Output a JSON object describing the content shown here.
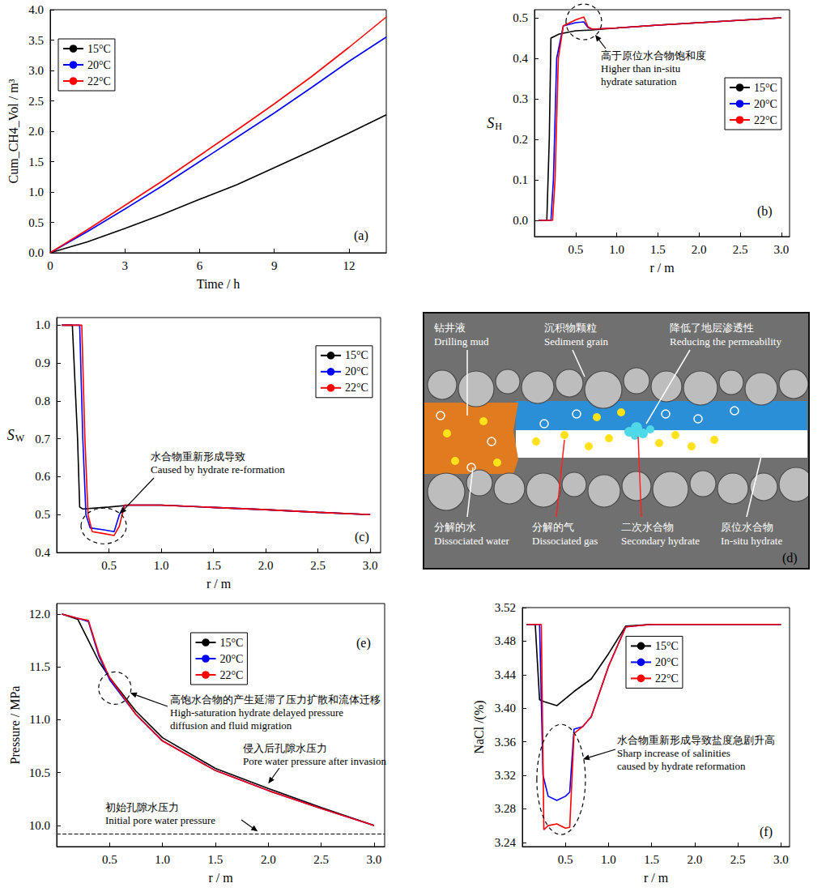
{
  "chart_data": [
    {
      "panel": "(a)",
      "type": "line",
      "x_label": "Time / h",
      "y_label": "Cum_CH4_Vol / m³",
      "x": [
        0,
        1.5,
        3,
        4.5,
        6,
        7.5,
        9,
        10.5,
        12,
        13.5
      ],
      "series": [
        {
          "name": "15°C",
          "color": "#000000",
          "values": [
            0,
            0.18,
            0.4,
            0.63,
            0.88,
            1.12,
            1.4,
            1.68,
            1.97,
            2.27
          ]
        },
        {
          "name": "20°C",
          "color": "#0000ff",
          "values": [
            0,
            0.35,
            0.72,
            1.1,
            1.5,
            1.9,
            2.3,
            2.72,
            3.15,
            3.55
          ]
        },
        {
          "name": "22°C",
          "color": "#ff0000",
          "values": [
            0,
            0.38,
            0.78,
            1.18,
            1.6,
            2.02,
            2.45,
            2.9,
            3.38,
            3.88
          ]
        }
      ],
      "xlim": [
        0,
        13.5
      ],
      "xticks": [
        0,
        3,
        6,
        9,
        12
      ],
      "ylim": [
        0,
        4
      ],
      "yticks": [
        {
          "value": 0,
          "label": "0.0"
        },
        0.5,
        {
          "value": 1,
          "label": "1.0"
        },
        1.5,
        {
          "value": 2,
          "label": "2.0"
        },
        2.5,
        {
          "value": 3,
          "label": "3.0"
        },
        3.5,
        {
          "value": 4,
          "label": "4.0"
        }
      ],
      "legend": "upper left",
      "grid": false
    },
    {
      "panel": "(b)",
      "type": "line",
      "x_label": "r / m",
      "y_label": {
        "text": "S",
        "subscript": "H"
      },
      "series": [
        {
          "name": "15°C",
          "color": "#000000",
          "x": [
            0.05,
            0.15,
            0.18,
            0.2,
            0.3,
            0.5,
            0.7,
            1.0,
            1.5,
            2.0,
            2.5,
            3.0
          ],
          "values": [
            0,
            0,
            0.2,
            0.45,
            0.46,
            0.468,
            0.47,
            0.475,
            0.482,
            0.488,
            0.494,
            0.5
          ]
        },
        {
          "name": "20°C",
          "color": "#0000ff",
          "x": [
            0.05,
            0.2,
            0.23,
            0.27,
            0.35,
            0.5,
            0.6,
            0.65,
            0.7,
            1.0,
            1.5,
            2.0,
            2.5,
            3.0
          ],
          "values": [
            0,
            0,
            0.1,
            0.4,
            0.48,
            0.488,
            0.49,
            0.476,
            0.472,
            0.475,
            0.482,
            0.488,
            0.494,
            0.5
          ]
        },
        {
          "name": "22°C",
          "color": "#ff0000",
          "x": [
            0.05,
            0.22,
            0.25,
            0.29,
            0.35,
            0.5,
            0.6,
            0.65,
            0.7,
            1.0,
            1.5,
            2.0,
            2.5,
            3.0
          ],
          "values": [
            0,
            0,
            0.1,
            0.4,
            0.48,
            0.495,
            0.502,
            0.478,
            0.472,
            0.475,
            0.482,
            0.488,
            0.494,
            0.5
          ]
        }
      ],
      "xlim": [
        0,
        3.1
      ],
      "xticks": [
        0.5,
        {
          "value": 1,
          "label": "1.0"
        },
        1.5,
        {
          "value": 2,
          "label": "2.0"
        },
        2.5,
        {
          "value": 3,
          "label": "3.0"
        }
      ],
      "ylim": [
        -0.04,
        0.52
      ],
      "yticks": [
        {
          "value": 0,
          "label": "0.0"
        },
        0.1,
        0.2,
        0.3,
        0.4,
        0.5
      ],
      "annotations": [
        {
          "zh": "高于原位水合物饱和度",
          "en": "Higher than in-situ hydrate saturation"
        }
      ],
      "legend": "right",
      "grid": false
    },
    {
      "panel": "(c)",
      "type": "line",
      "x_label": "r / m",
      "y_label": {
        "text": "S",
        "subscript": "W"
      },
      "series": [
        {
          "name": "15°C",
          "color": "#000000",
          "x": [
            0.05,
            0.15,
            0.2,
            0.22,
            0.25,
            0.5,
            0.7,
            1.0,
            1.5,
            2.0,
            2.5,
            3.0
          ],
          "values": [
            1,
            1,
            0.7,
            0.52,
            0.515,
            0.52,
            0.525,
            0.525,
            0.519,
            0.513,
            0.506,
            0.5
          ]
        },
        {
          "name": "20°C",
          "color": "#0000ff",
          "x": [
            0.05,
            0.22,
            0.25,
            0.28,
            0.32,
            0.45,
            0.55,
            0.6,
            0.65,
            1.0,
            1.5,
            2.0,
            2.5,
            3.0
          ],
          "values": [
            1,
            1,
            0.7,
            0.5,
            0.465,
            0.46,
            0.455,
            0.5,
            0.525,
            0.525,
            0.519,
            0.513,
            0.506,
            0.5
          ]
        },
        {
          "name": "22°C",
          "color": "#ff0000",
          "x": [
            0.05,
            0.24,
            0.27,
            0.3,
            0.34,
            0.45,
            0.55,
            0.6,
            0.65,
            1.0,
            1.5,
            2.0,
            2.5,
            3.0
          ],
          "values": [
            1,
            1,
            0.7,
            0.5,
            0.455,
            0.45,
            0.445,
            0.47,
            0.525,
            0.525,
            0.519,
            0.513,
            0.506,
            0.5
          ]
        }
      ],
      "xlim": [
        0,
        3.1
      ],
      "xticks": [
        0.5,
        {
          "value": 1,
          "label": "1.0"
        },
        1.5,
        {
          "value": 2,
          "label": "2.0"
        },
        2.5,
        {
          "value": 3,
          "label": "3.0"
        }
      ],
      "ylim": [
        0.4,
        1.02
      ],
      "yticks": [
        0.4,
        0.5,
        0.6,
        0.7,
        0.8,
        0.9,
        {
          "value": 1,
          "label": "1.0"
        }
      ],
      "annotations": [
        {
          "zh": "水合物重新形成导致",
          "en": "Caused by hydrate re-formation"
        }
      ],
      "legend": "upper right",
      "grid": false
    },
    {
      "panel": "(e)",
      "type": "line",
      "x_label": "r / m",
      "y_label": "Pressure / MPa",
      "series": [
        {
          "name": "15°C",
          "color": "#000000",
          "x": [
            0.05,
            0.2,
            0.3,
            0.4,
            0.5,
            0.75,
            1.0,
            1.5,
            2.0,
            2.5,
            3.0
          ],
          "values": [
            12.0,
            11.95,
            11.75,
            11.55,
            11.4,
            11.08,
            10.83,
            10.54,
            10.35,
            10.17,
            10.0
          ]
        },
        {
          "name": "20°C",
          "color": "#0000ff",
          "x": [
            0.05,
            0.2,
            0.3,
            0.4,
            0.5,
            0.75,
            1.0,
            1.5,
            2.0,
            2.5,
            3.0
          ],
          "values": [
            12.0,
            11.96,
            11.93,
            11.6,
            11.38,
            11.05,
            10.8,
            10.52,
            10.33,
            10.16,
            10.0
          ]
        },
        {
          "name": "22°C",
          "color": "#ff0000",
          "x": [
            0.05,
            0.2,
            0.3,
            0.4,
            0.5,
            0.75,
            1.0,
            1.5,
            2.0,
            2.5,
            3.0
          ],
          "values": [
            12.0,
            11.96,
            11.94,
            11.62,
            11.4,
            11.05,
            10.8,
            10.52,
            10.33,
            10.16,
            10.0
          ]
        }
      ],
      "reference_line": {
        "y": 9.92,
        "line_style": "dashed",
        "color": "#000000"
      },
      "xlim": [
        0,
        3.1
      ],
      "xticks": [
        0.5,
        {
          "value": 1,
          "label": "1.0"
        },
        1.5,
        {
          "value": 2,
          "label": "2.0"
        },
        2.5,
        {
          "value": 3,
          "label": "3.0"
        }
      ],
      "ylim": [
        9.8,
        12.1
      ],
      "yticks": [
        {
          "value": 10,
          "label": "10.0"
        },
        10.5,
        {
          "value": 11,
          "label": "11.0"
        },
        11.5,
        {
          "value": 12,
          "label": "12.0"
        }
      ],
      "annotations": [
        {
          "zh": "高饱水合物的产生延滞了压力扩散和流体迁移",
          "en": "High-saturation hydrate delayed pressure diffusion and fluid migration"
        },
        {
          "zh": "侵入后孔隙水压力",
          "en": "Pore water pressure after invasion"
        },
        {
          "zh": "初始孔隙水压力",
          "en": "Initial pore water pressure"
        }
      ],
      "legend": "upper center",
      "grid": false
    },
    {
      "panel": "(f)",
      "type": "line",
      "x_label": "r / m",
      "y_label": "NaCl /(%)",
      "series": [
        {
          "name": "15°C",
          "color": "#000000",
          "x": [
            0.05,
            0.15,
            0.2,
            0.25,
            0.4,
            0.6,
            0.8,
            1.0,
            1.2,
            1.5,
            2.0,
            3.0
          ],
          "values": [
            3.5,
            3.5,
            3.41,
            3.408,
            3.403,
            3.42,
            3.435,
            3.465,
            3.498,
            3.5,
            3.5,
            3.5
          ]
        },
        {
          "name": "20°C",
          "color": "#0000ff",
          "x": [
            0.05,
            0.2,
            0.24,
            0.3,
            0.4,
            0.5,
            0.55,
            0.6,
            0.7,
            0.8,
            1.0,
            1.2,
            1.5,
            3.0
          ],
          "values": [
            3.5,
            3.5,
            3.32,
            3.295,
            3.29,
            3.295,
            3.3,
            3.375,
            3.378,
            3.39,
            3.45,
            3.497,
            3.5,
            3.5
          ]
        },
        {
          "name": "22°C",
          "color": "#ff0000",
          "x": [
            0.05,
            0.22,
            0.25,
            0.3,
            0.4,
            0.5,
            0.55,
            0.6,
            0.7,
            0.8,
            1.0,
            1.2,
            1.5,
            3.0
          ],
          "values": [
            3.5,
            3.5,
            3.255,
            3.26,
            3.262,
            3.257,
            3.258,
            3.37,
            3.378,
            3.39,
            3.45,
            3.497,
            3.5,
            3.5
          ]
        }
      ],
      "xlim": [
        0,
        3.1
      ],
      "xticks": [
        0.5,
        {
          "value": 1,
          "label": "1.0"
        },
        1.5,
        {
          "value": 2,
          "label": "2.0"
        },
        2.5,
        {
          "value": 3,
          "label": "3.0"
        }
      ],
      "ylim": [
        3.235,
        3.52
      ],
      "yticks": [
        3.24,
        3.28,
        3.32,
        3.36,
        {
          "value": 3.4,
          "label": "3.40"
        },
        3.44,
        3.48,
        3.52
      ],
      "annotations": [
        {
          "zh": "水合物重新形成导致盐度急剧升高",
          "en": "Sharp increase of salinities caused by hydrate reformation"
        }
      ],
      "legend": "upper center",
      "grid": false
    }
  ],
  "diagram": {
    "panel": "(d)",
    "drilling_mud": {
      "zh": "钻井液",
      "en": "Drilling mud"
    },
    "sediment_grain": {
      "zh": "沉积物颗粒",
      "en": "Sediment grain"
    },
    "reducing_permeability": {
      "zh": "降低了地层渗透性",
      "en": "Reducing the permeability"
    },
    "dissociated_water": {
      "zh": "分解的水",
      "en": "Dissociated water"
    },
    "dissociated_gas": {
      "zh": "分解的气",
      "en": "Dissociated gas"
    },
    "secondary_hydrate": {
      "zh": "二次水合物",
      "en": "Secondary hydrate"
    },
    "in_situ_hydrate": {
      "zh": "原位水合物",
      "en": "In-situ hydrate"
    }
  }
}
